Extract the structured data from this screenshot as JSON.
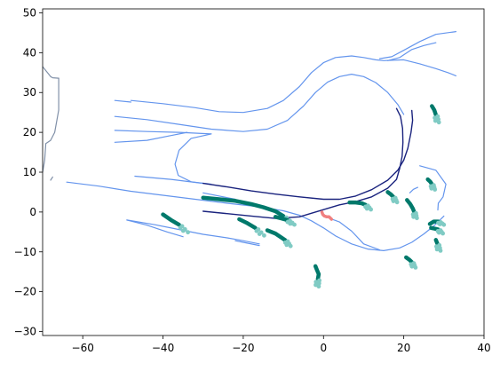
{
  "chart_data": {
    "type": "line",
    "title": "",
    "xlabel": "",
    "ylabel": "",
    "xlim": [
      -70,
      40
    ],
    "ylim": [
      -31,
      51
    ],
    "grid": false,
    "legend": "none",
    "x_ticks": [
      -60,
      -40,
      -20,
      0,
      20,
      40
    ],
    "x_tick_labels": [
      "−60",
      "−40",
      "−20",
      "0",
      "20",
      "40"
    ],
    "y_ticks": [
      -30,
      -20,
      -10,
      0,
      10,
      20,
      30,
      40,
      50
    ],
    "y_tick_labels": [
      "−30",
      "−20",
      "−10",
      "0",
      "10",
      "20",
      "30",
      "40",
      "50"
    ],
    "colors": {
      "lane": "#6495ed",
      "boundary": "#8090a8",
      "route": "#1a237e",
      "agent_dark": "#00796b",
      "agent_light": "#80cbc4",
      "ego": "#f08080"
    },
    "series": [
      {
        "role": "lane",
        "points": [
          [
            -48,
            28
          ],
          [
            -40,
            27.2
          ],
          [
            -32,
            26.2
          ],
          [
            -26,
            25.2
          ],
          [
            -20,
            25.0
          ],
          [
            -14,
            26
          ],
          [
            -10,
            28
          ],
          [
            -6,
            31.5
          ],
          [
            -3,
            35
          ],
          [
            0,
            37.5
          ],
          [
            3,
            38.8
          ],
          [
            7,
            39.2
          ],
          [
            10,
            38.8
          ],
          [
            13,
            38.2
          ],
          [
            15,
            38
          ],
          [
            20,
            38.2
          ],
          [
            24,
            37.2
          ],
          [
            28,
            36
          ],
          [
            31,
            35
          ],
          [
            33,
            34.2
          ]
        ]
      },
      {
        "role": "lane",
        "points": [
          [
            -52,
            28
          ],
          [
            -48,
            27.6
          ]
        ]
      },
      {
        "role": "lane",
        "points": [
          [
            -52,
            24
          ],
          [
            -44,
            23.2
          ],
          [
            -36,
            22
          ],
          [
            -28,
            20.8
          ],
          [
            -20,
            20.2
          ],
          [
            -14,
            20.8
          ],
          [
            -9,
            23
          ],
          [
            -5,
            26.6
          ],
          [
            -2,
            30
          ],
          [
            1,
            32.6
          ],
          [
            4,
            34
          ],
          [
            7,
            34.6
          ],
          [
            10,
            34
          ],
          [
            13,
            32.5
          ],
          [
            16,
            30
          ],
          [
            18.5,
            27
          ],
          [
            20,
            24.5
          ]
        ]
      },
      {
        "role": "lane",
        "points": [
          [
            -52,
            20.5
          ],
          [
            -44,
            20.2
          ],
          [
            -36,
            20
          ],
          [
            -28,
            19.6
          ]
        ]
      },
      {
        "role": "lane",
        "points": [
          [
            -52,
            17.5
          ],
          [
            -44,
            18
          ],
          [
            -38,
            19.2
          ],
          [
            -34,
            20
          ]
        ]
      },
      {
        "role": "lane",
        "points": [
          [
            -28,
            19.6
          ],
          [
            -33,
            18.5
          ],
          [
            -36,
            15.5
          ],
          [
            -37,
            12
          ],
          [
            -36.2,
            9.2
          ],
          [
            -33,
            7.6
          ],
          [
            -28,
            7
          ]
        ]
      },
      {
        "role": "lane",
        "points": [
          [
            14,
            38.5
          ],
          [
            17,
            39
          ],
          [
            20,
            40.6
          ],
          [
            24,
            42.8
          ],
          [
            28,
            44.6
          ],
          [
            33,
            45.3
          ]
        ]
      },
      {
        "role": "lane",
        "points": [
          [
            16,
            38
          ],
          [
            19,
            38.8
          ],
          [
            22,
            40.8
          ],
          [
            25,
            41.8
          ],
          [
            28,
            42.5
          ]
        ]
      },
      {
        "role": "lane",
        "points": [
          [
            -64,
            7.5
          ],
          [
            -56,
            6.5
          ],
          [
            -48,
            5.2
          ],
          [
            -40,
            4.2
          ],
          [
            -32,
            3.2
          ],
          [
            -24,
            2.2
          ],
          [
            -16,
            1.3
          ],
          [
            -10,
            0.3
          ],
          [
            -6,
            -0.8
          ],
          [
            -3,
            -2.2
          ],
          [
            0,
            -4
          ],
          [
            3,
            -6
          ],
          [
            7,
            -8
          ],
          [
            11,
            -9.3
          ],
          [
            15,
            -9.7
          ],
          [
            19,
            -9
          ],
          [
            22,
            -7.6
          ],
          [
            25,
            -5.5
          ],
          [
            27.5,
            -3.5
          ],
          [
            29,
            -2
          ],
          [
            30,
            -1
          ]
        ]
      },
      {
        "role": "lane",
        "points": [
          [
            -49,
            -2
          ],
          [
            -42,
            -3.2
          ],
          [
            -36,
            -4.4
          ],
          [
            -30,
            -5.6
          ],
          [
            -24,
            -6.5
          ],
          [
            -20,
            -7.2
          ],
          [
            -16,
            -8
          ]
        ]
      },
      {
        "role": "lane",
        "points": [
          [
            -49,
            -2
          ],
          [
            -44,
            -3.3
          ],
          [
            -39,
            -5
          ],
          [
            -35,
            -6.2
          ]
        ]
      },
      {
        "role": "lane",
        "points": [
          [
            -22,
            -7.2
          ],
          [
            -20,
            -7.6
          ],
          [
            -16,
            -8.4
          ]
        ]
      },
      {
        "role": "lane",
        "points": [
          [
            -47,
            9
          ],
          [
            -38,
            8.2
          ],
          [
            -30,
            7.2
          ]
        ]
      },
      {
        "role": "lane",
        "points": [
          [
            0,
            -1
          ],
          [
            4,
            -2.5
          ],
          [
            7,
            -4.8
          ],
          [
            10,
            -8
          ],
          [
            14,
            -9.5
          ]
        ]
      },
      {
        "role": "lane",
        "points": [
          [
            24,
            11.6
          ],
          [
            28,
            10.5
          ],
          [
            30.5,
            7
          ],
          [
            29.8,
            3.8
          ],
          [
            28.6,
            2.2
          ],
          [
            28.5,
            0.5
          ]
        ]
      },
      {
        "role": "lane",
        "points": [
          [
            23.5,
            6.2
          ],
          [
            22.4,
            5.7
          ],
          [
            21.5,
            4.8
          ]
        ]
      },
      {
        "role": "lane",
        "points": [
          [
            -30,
            4.8
          ],
          [
            -24,
            3.6
          ],
          [
            -22,
            3.2
          ]
        ]
      },
      {
        "role": "boundary",
        "points": [
          [
            -70,
            36.5
          ],
          [
            -68,
            34
          ],
          [
            -67.5,
            33.7
          ],
          [
            -66,
            33.6
          ]
        ]
      },
      {
        "role": "boundary",
        "points": [
          [
            -66,
            33.6
          ],
          [
            -66,
            25.6
          ],
          [
            -67,
            20
          ],
          [
            -68,
            18
          ],
          [
            -69.2,
            17.2
          ],
          [
            -69.5,
            13
          ],
          [
            -70,
            10
          ]
        ]
      },
      {
        "role": "boundary",
        "points": [
          [
            -68,
            8
          ],
          [
            -67.5,
            8.8
          ]
        ]
      },
      {
        "role": "route",
        "points": [
          [
            -30,
            7.2
          ],
          [
            -24,
            6.3
          ],
          [
            -18,
            5.3
          ],
          [
            -12,
            4.5
          ],
          [
            -6,
            3.8
          ],
          [
            0,
            3.2
          ],
          [
            4,
            3.2
          ],
          [
            8,
            4
          ],
          [
            12,
            5.6
          ],
          [
            16,
            8
          ],
          [
            18.5,
            10.5
          ],
          [
            20,
            13
          ],
          [
            21,
            16
          ],
          [
            21.8,
            20
          ],
          [
            22.2,
            23
          ],
          [
            22,
            25.5
          ]
        ]
      },
      {
        "role": "route",
        "points": [
          [
            -30,
            0.2
          ],
          [
            -24,
            -0.4
          ],
          [
            -18,
            -1
          ],
          [
            -12,
            -1.6
          ],
          [
            -6,
            -1.2
          ],
          [
            0,
            0.6
          ],
          [
            4,
            1.8
          ],
          [
            8,
            2.6
          ],
          [
            12,
            3.8
          ],
          [
            16,
            6
          ],
          [
            18.2,
            8.2
          ],
          [
            19,
            11
          ],
          [
            19.6,
            14
          ],
          [
            19.8,
            17.5
          ],
          [
            19.7,
            21
          ],
          [
            19.2,
            24
          ],
          [
            18.2,
            26
          ]
        ]
      },
      {
        "role": "agent",
        "points": [
          [
            -30,
            3.6
          ],
          [
            -26,
            3.2
          ],
          [
            -22,
            2.8
          ],
          [
            -18,
            2
          ],
          [
            -15,
            1.2
          ],
          [
            -12,
            0.2
          ],
          [
            -10,
            -1
          ]
        ]
      },
      {
        "role": "agent",
        "points": [
          [
            -40,
            -0.6
          ],
          [
            -38,
            -2
          ],
          [
            -36,
            -3.2
          ]
        ]
      },
      {
        "role": "agent",
        "points": [
          [
            -21,
            -1.8
          ],
          [
            -19,
            -2.8
          ],
          [
            -17,
            -4
          ]
        ]
      },
      {
        "role": "agent",
        "points": [
          [
            -14,
            -4.6
          ],
          [
            -12,
            -5.4
          ],
          [
            -10.5,
            -6.4
          ],
          [
            -9.5,
            -7.1
          ]
        ]
      },
      {
        "role": "agent",
        "points": [
          [
            -12,
            -1.2
          ],
          [
            -10.5,
            -1.6
          ],
          [
            -9,
            -2
          ]
        ]
      },
      {
        "role": "agent",
        "points": [
          [
            -2,
            -13.6
          ],
          [
            -1.6,
            -14.6
          ],
          [
            -1.2,
            -15.6
          ],
          [
            -1.4,
            -16.8
          ]
        ]
      },
      {
        "role": "agent",
        "points": [
          [
            6.5,
            2.4
          ],
          [
            8,
            2.4
          ],
          [
            9.5,
            2.2
          ],
          [
            10.5,
            1.8
          ]
        ]
      },
      {
        "role": "agent",
        "points": [
          [
            16,
            5
          ],
          [
            16.8,
            4.4
          ],
          [
            17.4,
            3.8
          ]
        ]
      },
      {
        "role": "agent",
        "points": [
          [
            20.8,
            3
          ],
          [
            21.6,
            2
          ],
          [
            22.3,
            0.8
          ],
          [
            22.6,
            0
          ]
        ]
      },
      {
        "role": "agent",
        "points": [
          [
            26,
            8.2
          ],
          [
            26.6,
            7.6
          ],
          [
            27,
            7
          ]
        ]
      },
      {
        "role": "agent",
        "points": [
          [
            27,
            26.6
          ],
          [
            27.6,
            25.6
          ],
          [
            28,
            24.4
          ]
        ]
      },
      {
        "role": "agent",
        "points": [
          [
            26.5,
            -3
          ],
          [
            27.5,
            -2.4
          ],
          [
            28.6,
            -2.4
          ]
        ]
      },
      {
        "role": "agent",
        "points": [
          [
            26.8,
            -4
          ],
          [
            27.8,
            -4.2
          ],
          [
            28.6,
            -4.4
          ]
        ]
      },
      {
        "role": "agent",
        "points": [
          [
            28,
            -7
          ],
          [
            28.4,
            -8
          ]
        ]
      },
      {
        "role": "agent",
        "points": [
          [
            20.6,
            -11.4
          ],
          [
            21.4,
            -12
          ],
          [
            22,
            -12.6
          ]
        ]
      },
      {
        "role": "ego",
        "points": [
          [
            -0.4,
            0
          ],
          [
            -0.2,
            -0.6
          ],
          [
            0.2,
            -1
          ],
          [
            0.8,
            -1.2
          ],
          [
            1.4,
            -1.2
          ],
          [
            2,
            -1.8
          ]
        ]
      }
    ]
  }
}
